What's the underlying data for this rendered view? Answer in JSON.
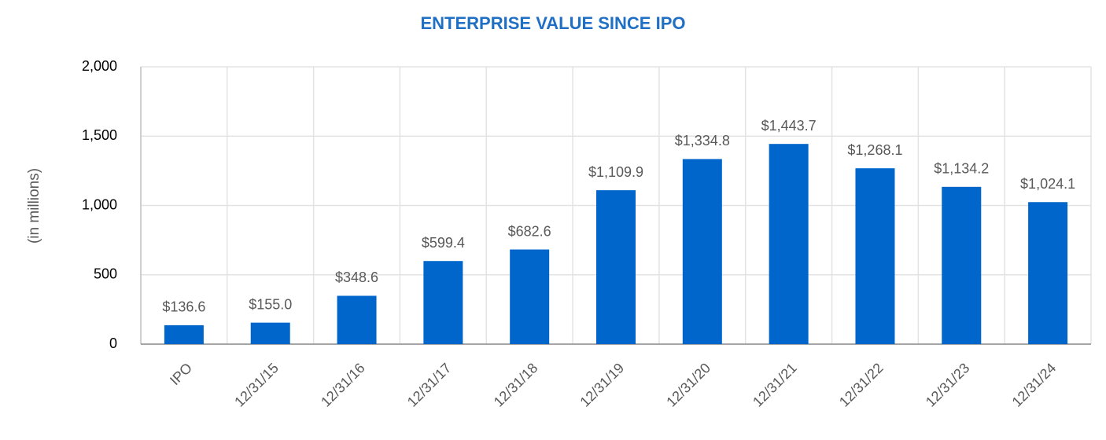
{
  "chart_data": {
    "type": "bar",
    "title": "ENTERPRISE VALUE SINCE IPO",
    "y_label": "(in millions)",
    "categories": [
      "IPO",
      "12/31/15",
      "12/31/16",
      "12/31/17",
      "12/31/18",
      "12/31/19",
      "12/31/20",
      "12/31/21",
      "12/31/22",
      "12/31/23",
      "12/31/24"
    ],
    "values": [
      136.6,
      155.0,
      348.6,
      599.4,
      682.6,
      1109.9,
      1334.8,
      1443.7,
      1268.1,
      1134.2,
      1024.1
    ],
    "value_labels": [
      "$136.6",
      "$155.0",
      "$348.6",
      "$599.4",
      "$682.6",
      "$1,109.9",
      "$1,334.8",
      "$1,443.7",
      "$1,268.1",
      "$1,134.2",
      "$1,024.1"
    ],
    "color": "#0066cc",
    "title_color": "#1f6fc5",
    "ylim": [
      0,
      2000
    ],
    "yticks": [
      0,
      500,
      {
        "value": 1000,
        "label": "1,000"
      },
      {
        "value": 1500,
        "label": "1,500"
      },
      {
        "value": 2000,
        "label": "2,000"
      }
    ],
    "grid": true
  }
}
